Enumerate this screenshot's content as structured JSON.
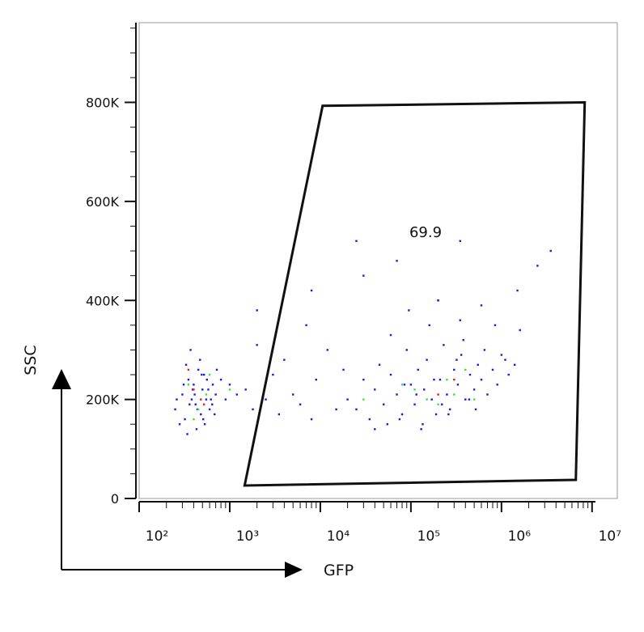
{
  "chart_data": {
    "type": "scatter",
    "x_label": "GFP",
    "y_label": "SSC",
    "xscale": "log",
    "xlim": [
      100,
      19000000
    ],
    "ylim": [
      0,
      961000
    ],
    "xticks": [
      {
        "value": 100,
        "label": "10²"
      },
      {
        "value": 1000,
        "label": "10³"
      },
      {
        "value": 10000,
        "label": "10⁴"
      },
      {
        "value": 100000,
        "label": "10⁵"
      },
      {
        "value": 1000000,
        "label": "10⁶"
      },
      {
        "value": 10000000,
        "label": "10⁷"
      }
    ],
    "xminorticks": [
      200,
      300,
      400,
      500,
      600,
      700,
      800,
      900,
      2000,
      3000,
      4000,
      5000,
      6000,
      7000,
      8000,
      9000,
      20000,
      30000,
      40000,
      50000,
      60000,
      70000,
      80000,
      90000,
      200000,
      300000,
      400000,
      500000,
      600000,
      700000,
      800000,
      900000,
      2000000,
      3000000,
      4000000,
      5000000,
      6000000,
      7000000,
      8000000,
      9000000
    ],
    "yticks": [
      0,
      {
        "value": 200000,
        "label": "200K"
      },
      {
        "value": 400000,
        "label": "400K"
      },
      {
        "value": 600000,
        "label": "600K"
      },
      {
        "value": 800000,
        "label": "800K"
      }
    ],
    "yminorticks": [
      50000,
      100000,
      150000,
      250000,
      300000,
      350000,
      450000,
      500000,
      550000,
      650000,
      700000,
      750000,
      850000,
      900000,
      950000
    ],
    "gate": {
      "x": [
        1460,
        10600,
        8300000,
        6620000
      ],
      "y": [
        26200,
        793000,
        800000,
        37600
      ],
      "label": "69.9",
      "color": "#111111"
    },
    "series": [
      {
        "color": "#1a1adf",
        "x": [
          250,
          300,
          320,
          350,
          380,
          400,
          420,
          450,
          480,
          500,
          520,
          550,
          600,
          650,
          700,
          280,
          330,
          360,
          390,
          430,
          470,
          510,
          560,
          620,
          680,
          260,
          310,
          340,
          370,
          410,
          440,
          490,
          530,
          580,
          640,
          720,
          800,
          900,
          1000,
          1200,
          1500,
          1800,
          2000,
          2500,
          3000,
          3500,
          4000,
          5000,
          6000,
          7000,
          8000,
          9000,
          12000,
          15000,
          18000,
          20000,
          25000,
          30000,
          35000,
          40000,
          45000,
          50000,
          55000,
          60000,
          70000,
          80000,
          90000,
          100000,
          110000,
          120000,
          130000,
          140000,
          150000,
          170000,
          190000,
          210000,
          230000,
          250000,
          270000,
          300000,
          330000,
          360000,
          400000,
          450000,
          500000,
          550000,
          600000,
          700000,
          800000,
          900000,
          1000000,
          1200000,
          1400000,
          60000,
          75000,
          95000,
          115000,
          135000,
          160000,
          180000,
          220000,
          260000,
          320000,
          380000,
          440000,
          520000,
          650000,
          850000,
          1100000,
          40000,
          85000,
          200000,
          350000,
          600000,
          1600000,
          2000,
          8000,
          25000,
          30000,
          70000,
          200000,
          350000,
          1500000,
          2500000,
          3500000
        ],
        "y": [
          180000,
          210000,
          160000,
          240000,
          200000,
          230000,
          190000,
          260000,
          170000,
          220000,
          250000,
          200000,
          180000,
          230000,
          210000,
          150000,
          270000,
          190000,
          220000,
          140000,
          280000,
          160000,
          240000,
          200000,
          170000,
          200000,
          230000,
          130000,
          300000,
          210000,
          180000,
          250000,
          150000,
          220000,
          190000,
          260000,
          240000,
          200000,
          230000,
          210000,
          220000,
          180000,
          310000,
          200000,
          250000,
          170000,
          280000,
          210000,
          190000,
          350000,
          160000,
          240000,
          300000,
          180000,
          260000,
          200000,
          180000,
          240000,
          160000,
          220000,
          270000,
          190000,
          150000,
          250000,
          210000,
          170000,
          300000,
          230000,
          190000,
          260000,
          140000,
          220000,
          280000,
          200000,
          170000,
          240000,
          310000,
          210000,
          180000,
          260000,
          230000,
          290000,
          200000,
          250000,
          220000,
          270000,
          240000,
          210000,
          260000,
          230000,
          290000,
          250000,
          270000,
          330000,
          160000,
          380000,
          210000,
          150000,
          350000,
          240000,
          190000,
          170000,
          280000,
          320000,
          200000,
          180000,
          300000,
          350000,
          280000,
          140000,
          230000,
          400000,
          360000,
          390000,
          340000,
          380000,
          420000,
          520000,
          450000,
          480000,
          400000,
          520000,
          420000,
          470000,
          500000
        ]
      },
      {
        "color": "#3fe03f",
        "x": [
          350,
          450,
          550,
          400,
          600,
          110000,
          150000,
          250000,
          300000,
          400000,
          200000,
          80000,
          500000,
          1000,
          30000
        ],
        "y": [
          230000,
          180000,
          210000,
          160000,
          250000,
          220000,
          200000,
          240000,
          210000,
          260000,
          190000,
          230000,
          200000,
          220000,
          200000
        ]
      },
      {
        "color": "#e01f1f",
        "x": [
          400,
          480,
          350,
          520,
          300000,
          200000
        ],
        "y": [
          220000,
          200000,
          260000,
          190000,
          240000,
          210000
        ]
      }
    ]
  }
}
